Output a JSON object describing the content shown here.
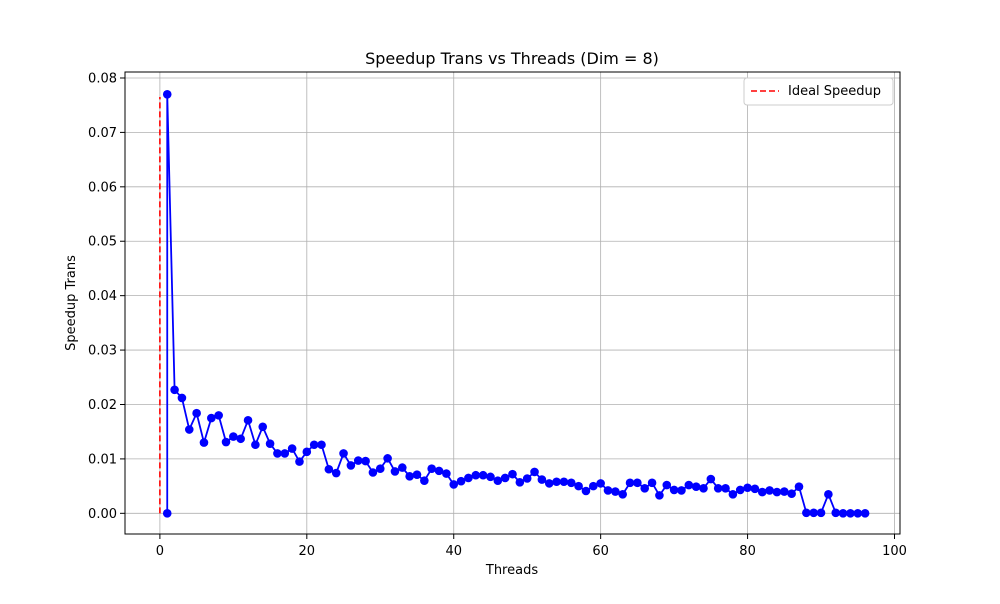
{
  "chart_data": {
    "type": "line",
    "title": "Speedup Trans vs Threads (Dim = 8)",
    "xlabel": "Threads",
    "ylabel": "Speedup Trans",
    "xlim": [
      -4.75,
      100.75
    ],
    "ylim": [
      -0.0038,
      0.0811
    ],
    "xticks": [
      0,
      20,
      40,
      60,
      80,
      100
    ],
    "xtick_labels": [
      "0",
      "20",
      "40",
      "60",
      "80",
      "100"
    ],
    "yticks": [
      0.0,
      0.01,
      0.02,
      0.03,
      0.04,
      0.05,
      0.06,
      0.07,
      0.08
    ],
    "ytick_labels": [
      "0.00",
      "0.01",
      "0.02",
      "0.03",
      "0.04",
      "0.05",
      "0.06",
      "0.07",
      "0.08"
    ],
    "grid": true,
    "legend": {
      "position": "top-right",
      "entries": [
        "Ideal Speedup"
      ]
    },
    "series": [
      {
        "name": "",
        "color": "#0000ff",
        "style": "solid",
        "marker": "circle",
        "x": [
          1,
          1,
          2,
          3,
          4,
          5,
          6,
          7,
          8,
          9,
          10,
          11,
          12,
          13,
          14,
          15,
          16,
          17,
          18,
          19,
          20,
          21,
          22,
          23,
          24,
          25,
          26,
          27,
          28,
          29,
          30,
          31,
          32,
          33,
          34,
          35,
          36,
          37,
          38,
          39,
          40,
          41,
          42,
          43,
          44,
          45,
          46,
          47,
          48,
          49,
          50,
          51,
          52,
          53,
          54,
          55,
          56,
          57,
          58,
          59,
          60,
          61,
          62,
          63,
          64,
          65,
          66,
          67,
          68,
          69,
          70,
          71,
          72,
          73,
          74,
          75,
          76,
          77,
          78,
          79,
          80,
          81,
          82,
          83,
          84,
          85,
          86,
          87,
          88,
          89,
          90,
          91,
          92,
          93,
          94,
          95,
          96
        ],
        "y": [
          0.0,
          0.077,
          0.0227,
          0.0212,
          0.0154,
          0.0184,
          0.013,
          0.0175,
          0.018,
          0.0131,
          0.0141,
          0.0137,
          0.0171,
          0.0126,
          0.0159,
          0.0128,
          0.011,
          0.011,
          0.0119,
          0.0095,
          0.0113,
          0.0126,
          0.0126,
          0.0081,
          0.0074,
          0.011,
          0.0088,
          0.0097,
          0.0096,
          0.0075,
          0.0082,
          0.0101,
          0.0077,
          0.0084,
          0.0068,
          0.0071,
          0.006,
          0.0082,
          0.0078,
          0.0073,
          0.0053,
          0.0059,
          0.0065,
          0.007,
          0.007,
          0.0067,
          0.006,
          0.0065,
          0.0072,
          0.0057,
          0.0064,
          0.0076,
          0.0062,
          0.0055,
          0.0058,
          0.0058,
          0.0056,
          0.005,
          0.0041,
          0.005,
          0.0055,
          0.0042,
          0.004,
          0.0035,
          0.0056,
          0.0056,
          0.0046,
          0.0056,
          0.0033,
          0.0052,
          0.0043,
          0.0042,
          0.0052,
          0.0049,
          0.0046,
          0.0063,
          0.0046,
          0.0046,
          0.0035,
          0.0043,
          0.0047,
          0.0045,
          0.0039,
          0.0042,
          0.0039,
          0.004,
          0.0036,
          0.0049,
          0.0001,
          0.0001,
          0.0001,
          0.0035,
          0.0001,
          0.0,
          0.0,
          0.0,
          0.0
        ]
      },
      {
        "name": "Ideal Speedup",
        "color": "#ff0000",
        "style": "dashed",
        "marker": "none",
        "x": [
          0,
          0
        ],
        "y": [
          0.0,
          0.0765
        ]
      }
    ]
  }
}
